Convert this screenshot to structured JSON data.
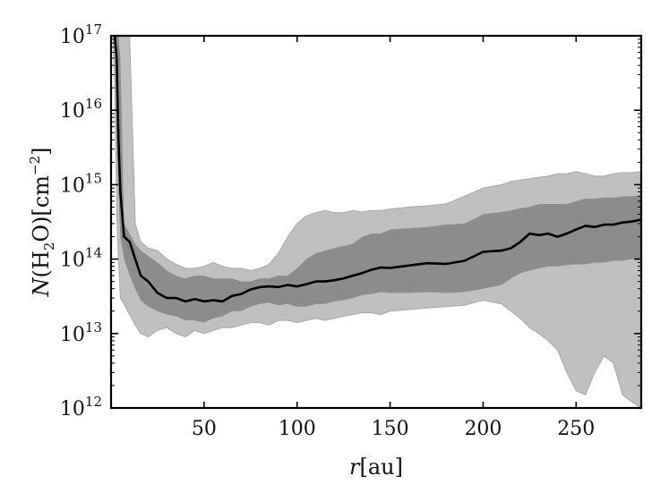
{
  "chart_data": {
    "type": "line",
    "x_label_main": "r",
    "x_label_unit": "[au]",
    "y_label_main": "N",
    "y_label_species_a": "(H",
    "y_label_species_sub": "2",
    "y_label_species_b": "O)",
    "y_label_unit_a": "[cm",
    "y_label_unit_sup": "−2",
    "y_label_unit_b": "]",
    "y_scale": "log",
    "xlim": [
      0,
      285
    ],
    "ylim_exponent": [
      12,
      17
    ],
    "x_ticks": [
      50,
      100,
      150,
      200,
      250
    ],
    "y_tick_exponents": [
      12,
      13,
      14,
      15,
      16,
      17
    ],
    "y_tick_base": "10",
    "grid": false,
    "colors": {
      "median_line": "#000000",
      "inner_band": "#8c8c8c",
      "outer_band": "#c0c0c0",
      "axes": "#000000"
    },
    "x": [
      1,
      2,
      3,
      4,
      5,
      7,
      10,
      13,
      16,
      20,
      25,
      30,
      35,
      40,
      45,
      50,
      55,
      60,
      65,
      70,
      75,
      80,
      85,
      90,
      95,
      100,
      105,
      110,
      115,
      120,
      125,
      130,
      135,
      140,
      145,
      150,
      160,
      170,
      180,
      190,
      200,
      210,
      215,
      220,
      225,
      230,
      235,
      240,
      245,
      250,
      255,
      260,
      265,
      270,
      275,
      280,
      285
    ],
    "series": [
      {
        "role": "median",
        "y": [
          1e+17,
          1e+17,
          5e+16,
          4000000000000000.0,
          800000000000000.0,
          200000000000000.0,
          170000000000000.0,
          100000000000000.0,
          60000000000000.0,
          50000000000000.0,
          35000000000000.0,
          30000000000000.0,
          30000000000000.0,
          27000000000000.0,
          29000000000000.0,
          27000000000000.0,
          28000000000000.0,
          27000000000000.0,
          32000000000000.0,
          34000000000000.0,
          39000000000000.0,
          42000000000000.0,
          43000000000000.0,
          42000000000000.0,
          45000000000000.0,
          43000000000000.0,
          46000000000000.0,
          50000000000000.0,
          50000000000000.0,
          52000000000000.0,
          55000000000000.0,
          60000000000000.0,
          65000000000000.0,
          72000000000000.0,
          77000000000000.0,
          76000000000000.0,
          82000000000000.0,
          88000000000000.0,
          86000000000000.0,
          95000000000000.0,
          125000000000000.0,
          130000000000000.0,
          140000000000000.0,
          170000000000000.0,
          220000000000000.0,
          210000000000000.0,
          220000000000000.0,
          200000000000000.0,
          220000000000000.0,
          250000000000000.0,
          280000000000000.0,
          270000000000000.0,
          290000000000000.0,
          290000000000000.0,
          310000000000000.0,
          320000000000000.0,
          340000000000000.0
        ]
      },
      {
        "role": "inner_band",
        "upper": [
          1e+17,
          1e+17,
          1e+17,
          1e+17,
          5e+16,
          300000000000000.0,
          220000000000000.0,
          160000000000000.0,
          130000000000000.0,
          110000000000000.0,
          90000000000000.0,
          70000000000000.0,
          60000000000000.0,
          55000000000000.0,
          60000000000000.0,
          60000000000000.0,
          55000000000000.0,
          55000000000000.0,
          55000000000000.0,
          50000000000000.0,
          50000000000000.0,
          55000000000000.0,
          55000000000000.0,
          60000000000000.0,
          60000000000000.0,
          75000000000000.0,
          100000000000000.0,
          120000000000000.0,
          130000000000000.0,
          140000000000000.0,
          150000000000000.0,
          160000000000000.0,
          200000000000000.0,
          220000000000000.0,
          220000000000000.0,
          250000000000000.0,
          260000000000000.0,
          270000000000000.0,
          290000000000000.0,
          300000000000000.0,
          400000000000000.0,
          430000000000000.0,
          450000000000000.0,
          480000000000000.0,
          500000000000000.0,
          550000000000000.0,
          550000000000000.0,
          550000000000000.0,
          550000000000000.0,
          600000000000000.0,
          650000000000000.0,
          650000000000000.0,
          670000000000000.0,
          670000000000000.0,
          690000000000000.0,
          700000000000000.0,
          710000000000000.0
        ],
        "lower": [
          1e+17,
          1e+17,
          4000000000000000.0,
          800000000000000.0,
          200000000000000.0,
          100000000000000.0,
          60000000000000.0,
          40000000000000.0,
          28000000000000.0,
          23000000000000.0,
          20000000000000.0,
          18000000000000.0,
          17000000000000.0,
          15000000000000.0,
          15000000000000.0,
          14000000000000.0,
          16000000000000.0,
          17000000000000.0,
          20000000000000.0,
          20000000000000.0,
          23000000000000.0,
          25000000000000.0,
          26000000000000.0,
          24000000000000.0,
          25000000000000.0,
          23000000000000.0,
          23000000000000.0,
          25000000000000.0,
          25000000000000.0,
          27000000000000.0,
          28000000000000.0,
          30000000000000.0,
          33000000000000.0,
          34000000000000.0,
          36000000000000.0,
          35000000000000.0,
          35000000000000.0,
          36000000000000.0,
          35000000000000.0,
          36000000000000.0,
          40000000000000.0,
          45000000000000.0,
          55000000000000.0,
          65000000000000.0,
          70000000000000.0,
          75000000000000.0,
          80000000000000.0,
          80000000000000.0,
          83000000000000.0,
          85000000000000.0,
          85000000000000.0,
          90000000000000.0,
          90000000000000.0,
          95000000000000.0,
          95000000000000.0,
          100000000000000.0,
          100000000000000.0
        ]
      },
      {
        "role": "outer_band",
        "upper": [
          1e+17,
          1e+17,
          1e+17,
          1e+17,
          1e+17,
          1e+17,
          1e+17,
          300000000000000.0,
          170000000000000.0,
          140000000000000.0,
          130000000000000.0,
          100000000000000.0,
          85000000000000.0,
          75000000000000.0,
          75000000000000.0,
          80000000000000.0,
          90000000000000.0,
          80000000000000.0,
          75000000000000.0,
          75000000000000.0,
          70000000000000.0,
          75000000000000.0,
          85000000000000.0,
          120000000000000.0,
          200000000000000.0,
          300000000000000.0,
          380000000000000.0,
          420000000000000.0,
          450000000000000.0,
          420000000000000.0,
          420000000000000.0,
          450000000000000.0,
          430000000000000.0,
          450000000000000.0,
          450000000000000.0,
          470000000000000.0,
          500000000000000.0,
          520000000000000.0,
          550000000000000.0,
          700000000000000.0,
          900000000000000.0,
          1000000000000000.0,
          1100000000000000.0,
          1150000000000000.0,
          1200000000000000.0,
          1250000000000000.0,
          1300000000000000.0,
          1400000000000000.0,
          1400000000000000.0,
          1500000000000000.0,
          1400000000000000.0,
          1300000000000000.0,
          1300000000000000.0,
          1400000000000000.0,
          1450000000000000.0,
          1450000000000000.0,
          1500000000000000.0
        ],
        "lower": [
          1e+17,
          2e+16,
          500000000000000.0,
          100000000000000.0,
          30000000000000.0,
          25000000000000.0,
          18000000000000.0,
          13000000000000.0,
          10000000000000.0,
          9000000000000.0,
          11000000000000.0,
          12000000000000.0,
          10000000000000.0,
          9000000000000.0,
          11000000000000.0,
          10000000000000.0,
          11000000000000.0,
          12000000000000.0,
          12000000000000.0,
          13000000000000.0,
          14000000000000.0,
          14000000000000.0,
          13000000000000.0,
          15000000000000.0,
          15000000000000.0,
          14000000000000.0,
          15000000000000.0,
          16000000000000.0,
          15000000000000.0,
          16000000000000.0,
          17000000000000.0,
          18000000000000.0,
          19000000000000.0,
          19000000000000.0,
          18000000000000.0,
          20000000000000.0,
          21000000000000.0,
          22000000000000.0,
          23000000000000.0,
          24000000000000.0,
          28000000000000.0,
          25000000000000.0,
          20000000000000.0,
          16000000000000.0,
          12000000000000.0,
          10000000000000.0,
          8000000000000.0,
          6000000000000.0,
          3000000000000.0,
          1700000000000.0,
          1500000000000.0,
          3000000000000.0,
          5000000000000.0,
          4000000000000.0,
          1500000000000.0,
          1200000000000.0,
          1000000000000.0
        ]
      }
    ]
  }
}
